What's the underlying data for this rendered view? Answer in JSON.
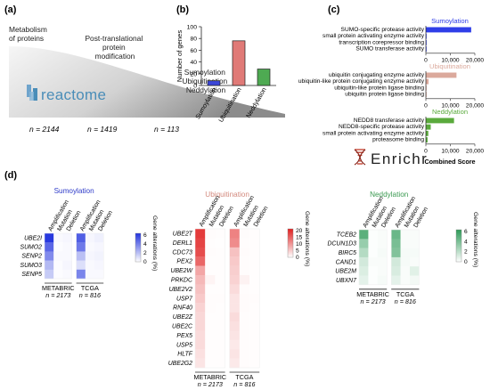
{
  "panels": {
    "a": "(a)",
    "b": "(b)",
    "c": "(c)",
    "d": "(d)"
  },
  "panel_a": {
    "stage_labels": [
      {
        "lines": [
          "Metabolism",
          "of proteins"
        ]
      },
      {
        "lines": [
          "Post-translational",
          "protein",
          "modification"
        ]
      },
      {
        "lines": [
          "Sumoylation",
          "Ubiquitination",
          "Neddylation"
        ]
      }
    ],
    "counts": [
      "n = 2144",
      "n = 1419",
      "n = 113"
    ],
    "logo": "reactome",
    "colors": {
      "curve_light": "#f4f4f4",
      "curve_dark": "#9a9a9a",
      "logo": "#4a8db8"
    }
  },
  "chart_data": [
    {
      "panel": "b",
      "type": "bar",
      "categories": [
        "Sumoylation",
        "Ubiquitination",
        "Neddylation"
      ],
      "values": [
        8,
        76,
        28
      ],
      "ylabel": "Number of genes",
      "ylim": [
        0,
        100
      ],
      "yticks": [
        0,
        20,
        40,
        60,
        80,
        100
      ],
      "colors": [
        "#3b46d8",
        "#e07a77",
        "#4eaa52"
      ]
    },
    {
      "panel": "c",
      "type": "bar",
      "orientation": "horizontal",
      "xlabel": "Combined Score",
      "xlim": [
        0,
        20000
      ],
      "xticks": [
        "0",
        "10,000",
        "20,000"
      ],
      "groups": [
        {
          "title": "Sumoylation",
          "color": "#2f3ee8",
          "terms": [
            "SUMO-specific protease activity",
            "small protein activating enzyme activity",
            "transcription corepressor binding",
            "SUMO transferase activity"
          ],
          "values": [
            18500,
            150,
            100,
            80
          ]
        },
        {
          "title": "Ubiquitination",
          "color": "#dba99c",
          "terms": [
            "ubiquitin conjugating enzyme activity",
            "ubiquitin-like protein conjugating enzyme activity",
            "ubiquitin-like protein ligase binding",
            "ubiquitin protein ligase binding"
          ],
          "values": [
            12500,
            1100,
            250,
            220
          ]
        },
        {
          "title": "Neddylation",
          "color": "#5aaa3c",
          "terms": [
            "NEDD8 transferase activity",
            "NEDD8-specific protease activity",
            "small protein activating enzyme activity",
            "proteasome binding"
          ],
          "values": [
            11500,
            2000,
            1000,
            700
          ]
        }
      ],
      "footer_logo": "Enrichr"
    },
    {
      "panel": "d",
      "type": "heatmap",
      "columns": [
        "Amplification",
        "Mutation",
        "Deletion"
      ],
      "cohorts": [
        {
          "name": "METABRIC",
          "n": "n = 2173"
        },
        {
          "name": "TCGA",
          "n": "n = 816"
        }
      ],
      "groups": [
        {
          "title": "Sumoylation",
          "title_color": "#2c39c8",
          "color": "#2233dd",
          "legend_label": "Gene alterations (%)",
          "scale_ticks": [
            "6",
            "4",
            "2",
            "0"
          ],
          "max": 7,
          "genes": [
            "UBE2I",
            "SUMO2",
            "SENP2",
            "SUMO3",
            "SENP5"
          ],
          "values": [
            [
              6.8,
              0.2,
              0.3,
              5.5,
              0.3,
              0.5
            ],
            [
              5.2,
              0.1,
              0.2,
              4.6,
              0.2,
              0.3
            ],
            [
              4.0,
              0.2,
              0.2,
              2.2,
              0.3,
              0.4
            ],
            [
              2.4,
              0.1,
              0.3,
              1.1,
              0.2,
              0.3
            ],
            [
              1.8,
              0.1,
              0.2,
              4.2,
              0.2,
              0.2
            ]
          ]
        },
        {
          "title": "Ubiquitination",
          "title_color": "#d38a7e",
          "color": "#e02020",
          "legend_label": "Gene alterations (%)",
          "scale_ticks": [
            "20",
            "15",
            "10",
            "5",
            "0"
          ],
          "max": 25,
          "genes": [
            "UBE2T",
            "DERL1",
            "CDC73",
            "PEX2",
            "UBE2W",
            "PRKDC",
            "UBE2V2",
            "USP7",
            "RNF40",
            "UBE2Z",
            "UBE2C",
            "PEX5",
            "USP5",
            "HLTF",
            "UBE2G2"
          ],
          "values": [
            [
              22,
              0.3,
              0.2,
              14,
              0.5,
              0.2
            ],
            [
              21,
              0.2,
              0.1,
              13,
              0.3,
              0.2
            ],
            [
              20,
              0.3,
              0.2,
              7,
              0.4,
              0.2
            ],
            [
              17,
              0.2,
              0.2,
              6,
              0.3,
              0.2
            ],
            [
              10,
              0.2,
              0.2,
              5.5,
              0.3,
              0.2
            ],
            [
              8,
              1.2,
              0.2,
              5,
              1.5,
              0.2
            ],
            [
              7,
              0.2,
              0.2,
              4,
              0.3,
              0.2
            ],
            [
              6,
              0.3,
              0.3,
              3,
              0.4,
              0.3
            ],
            [
              5,
              0.3,
              0.2,
              3,
              0.4,
              0.2
            ],
            [
              4.5,
              0.2,
              0.2,
              4,
              0.3,
              0.2
            ],
            [
              4.5,
              0.2,
              0.2,
              3.5,
              0.3,
              0.2
            ],
            [
              4,
              0.2,
              0.2,
              3,
              0.3,
              0.2
            ],
            [
              4,
              0.2,
              0.2,
              2.5,
              0.3,
              0.2
            ],
            [
              3.5,
              0.2,
              0.2,
              3,
              0.3,
              0.2
            ],
            [
              3,
              0.2,
              0.2,
              2.5,
              0.3,
              0.2
            ]
          ]
        },
        {
          "title": "Neddylation",
          "title_color": "#3c9a52",
          "color": "#2e9a58",
          "legend_label": "Gene alterations (%)",
          "scale_ticks": [
            "6",
            "4",
            "2",
            "0"
          ],
          "max": 7,
          "genes": [
            "TCEB2",
            "DCUN1D3",
            "BIRC5",
            "CAND1",
            "UBE2M",
            "UBXN7"
          ],
          "values": [
            [
              5.5,
              0.1,
              0.2,
              5.0,
              0.2,
              0.2
            ],
            [
              3.5,
              0.1,
              0.2,
              4.5,
              0.2,
              0.2
            ],
            [
              2.5,
              0.1,
              0.3,
              4.2,
              0.3,
              0.3
            ],
            [
              1.5,
              0.2,
              0.2,
              1.5,
              0.3,
              0.2
            ],
            [
              1.2,
              0.1,
              0.2,
              1.3,
              0.2,
              1.0
            ],
            [
              0.9,
              0.1,
              0.3,
              0.9,
              0.2,
              0.4
            ]
          ]
        }
      ]
    }
  ]
}
